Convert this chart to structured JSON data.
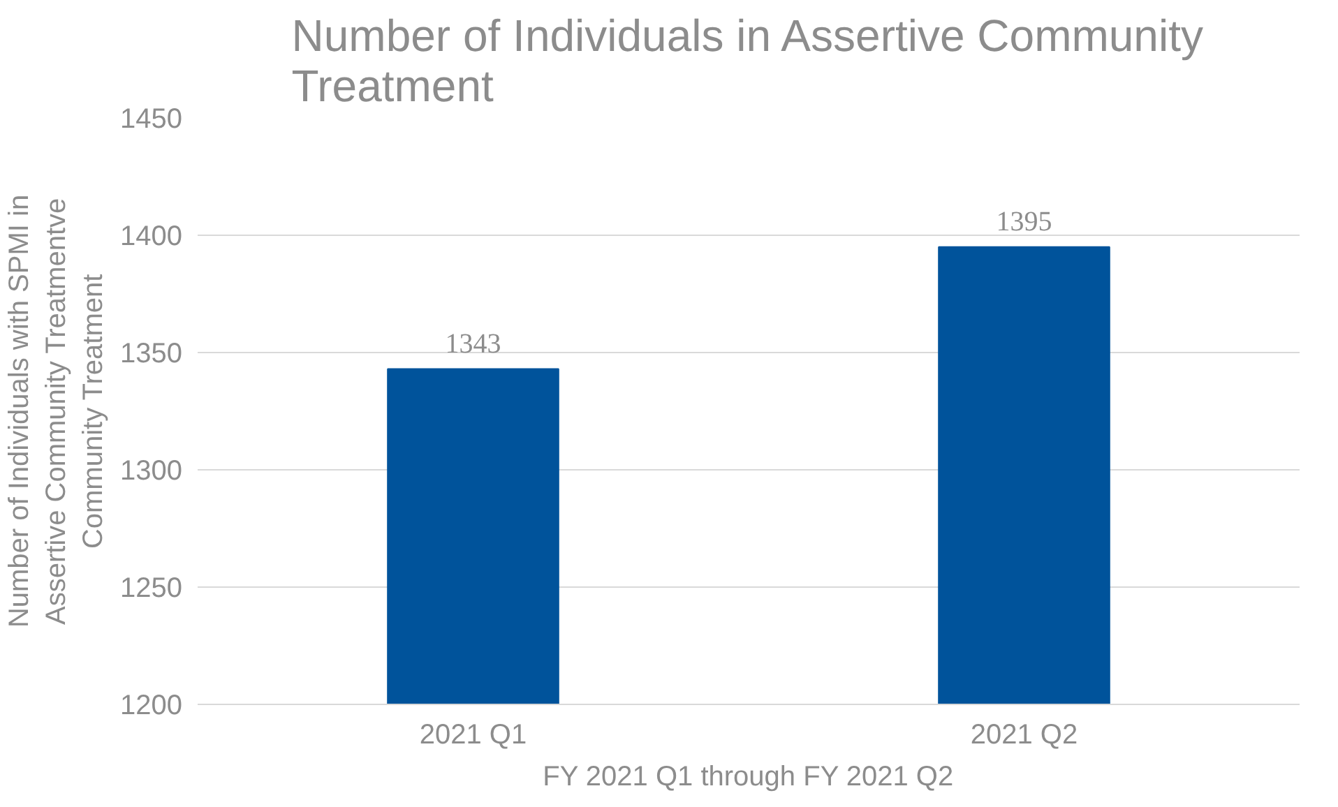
{
  "chart_data": {
    "type": "bar",
    "title": "Number of Individuals in Assertive Community\nTreatment",
    "xlabel": "FY 2021 Q1 through FY 2021 Q2",
    "ylabel": "Number of Individuals with SPMI in\nAssertive Community Treatmentve\nCommunity Treatment",
    "categories": [
      "2021 Q1",
      "2021 Q2"
    ],
    "series": [
      {
        "color": "#00539b",
        "values": [
          1343,
          1395
        ]
      }
    ],
    "ylim": [
      1200,
      1450
    ],
    "yticks": [
      1200,
      1250,
      1300,
      1350,
      1400,
      1450
    ],
    "grid": "y",
    "data_labels": true
  }
}
